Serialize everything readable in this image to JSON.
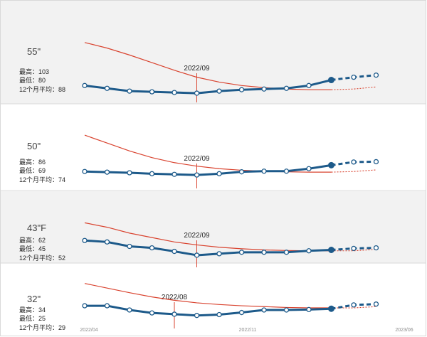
{
  "chart_data": [
    {
      "type": "line",
      "size_label": "55\"",
      "stats": {
        "max": "最高：103",
        "min": "最低：80",
        "avg": "12个月平均：88"
      },
      "annotation": {
        "label": "2022/09",
        "index": 5
      },
      "price_series": [
        91,
        89,
        87,
        86.5,
        86,
        85.5,
        87,
        88,
        88.5,
        89,
        91,
        95
      ],
      "price_forecast": [
        97,
        98.5
      ],
      "trend_series": [
        122,
        118,
        113,
        107.5,
        102,
        97,
        93.5,
        91,
        89.5,
        88.5,
        88,
        88
      ],
      "trend_forecast": [
        88.5,
        90
      ],
      "ylim": [
        84,
        126
      ],
      "shaded": true
    },
    {
      "type": "line",
      "size_label": "50\"",
      "stats": {
        "max": "最高：86",
        "min": "最低：69",
        "avg": "12个月平均：74"
      },
      "annotation": {
        "label": "2022/09",
        "index": 5
      },
      "price_series": [
        73.5,
        73.3,
        73.1,
        72.8,
        72.6,
        72.4,
        72.8,
        73.4,
        73.6,
        73.6,
        74.4,
        75.5
      ],
      "price_forecast": [
        76.5,
        76.6
      ],
      "trend_series": [
        85,
        82.5,
        80,
        77.9,
        76.3,
        75.2,
        74.4,
        73.9,
        73.6,
        73.4,
        73.3,
        73.3
      ],
      "trend_forecast": [
        73.5,
        74
      ],
      "ylim": [
        70.4,
        86.6
      ],
      "shaded": false
    },
    {
      "type": "line",
      "size_label": "43\"F",
      "stats": {
        "max": "最高：62",
        "min": "最低：45",
        "avg": "12个月平均：52"
      },
      "annotation": {
        "label": "2022/09",
        "index": 5
      },
      "price_series": [
        55.5,
        55,
        53.5,
        53,
        51.8,
        50.5,
        51,
        51.5,
        51.5,
        51.5,
        52,
        52.3
      ],
      "price_forecast": [
        52.8,
        53
      ],
      "trend_series": [
        61.5,
        60,
        58,
        56.5,
        55,
        54,
        53.2,
        52.7,
        52.3,
        52.1,
        52,
        52
      ],
      "trend_forecast": [
        52,
        52.5
      ],
      "ylim": [
        48.8,
        62.8
      ],
      "shaded": true
    },
    {
      "type": "line",
      "size_label": "32\"",
      "stats": {
        "max": "最高：34",
        "min": "最低：25",
        "avg": "12个月平均：29"
      },
      "annotation": {
        "label": "2022/08",
        "index": 4
      },
      "price_series": [
        28.5,
        28.5,
        27.5,
        26.8,
        26.5,
        26.2,
        26.4,
        26.9,
        27.5,
        27.5,
        27.6,
        27.8
      ],
      "price_forecast": [
        28.7,
        28.9
      ],
      "trend_series": [
        33.8,
        32.7,
        31.6,
        30.6,
        29.8,
        29.2,
        28.8,
        28.5,
        28.3,
        28.1,
        28,
        28
      ],
      "trend_forecast": [
        28,
        28.3
      ],
      "ylim": [
        24.8,
        35.6
      ],
      "shaded": false
    }
  ],
  "x_axis": {
    "tick_labels": [
      "2022/04",
      "2022/11",
      "2023/06"
    ]
  },
  "colors": {
    "price": "#1d5a8a",
    "trend": "#d9432f",
    "annotation": "#d9432f",
    "panel_shade": "#f2f2f2",
    "divider": "#d9d9d9"
  }
}
